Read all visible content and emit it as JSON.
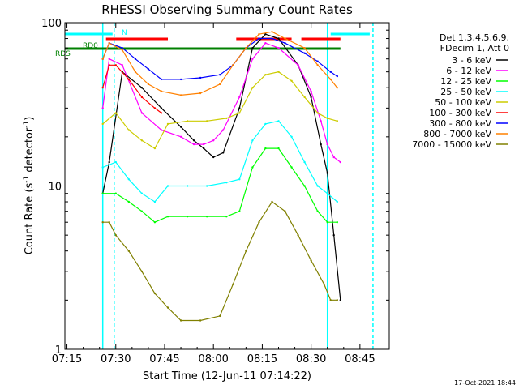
{
  "chart_data": {
    "type": "line",
    "title": "RHESSI Observing Summary Count Rates",
    "xlabel": "Start Time (12-Jun-11 07:14:22)",
    "ylabel_main": "Count Rate (s",
    "ylabel_sup1": "-1",
    "ylabel_mid": " detector",
    "ylabel_sup2": "-1",
    "ylabel_end": ")",
    "yscale": "log",
    "ylim": [
      1,
      100
    ],
    "xlim": [
      "07:14:22",
      "08:54:00"
    ],
    "x_ticks": [
      "07:15",
      "07:30",
      "07:45",
      "08:00",
      "08:15",
      "08:30",
      "08:45"
    ],
    "y_ticks": [
      "1",
      "10",
      "100"
    ],
    "legend_header": [
      "Det 1,3,4,5,6,9,",
      "FDecim 1, Att 0"
    ],
    "series": [
      {
        "name": "3 - 6 keV",
        "color": "#000000",
        "x": [
          "07:26",
          "07:28",
          "07:32",
          "07:38",
          "07:44",
          "07:50",
          "07:54",
          "07:57",
          "08:00",
          "08:03",
          "08:08",
          "08:12",
          "08:16",
          "08:20",
          "08:26",
          "08:30",
          "08:33",
          "08:35",
          "08:37",
          "08:39"
        ],
        "values": [
          9,
          14,
          50,
          40,
          30,
          23,
          19,
          17,
          15,
          16,
          30,
          70,
          85,
          80,
          55,
          35,
          18,
          12,
          5,
          2
        ]
      },
      {
        "name": "6 - 12 keV",
        "color": "#ff00ff",
        "x": [
          "07:26",
          "07:28",
          "07:32",
          "07:38",
          "07:44",
          "07:50",
          "07:54",
          "07:57",
          "08:00",
          "08:03",
          "08:08",
          "08:12",
          "08:16",
          "08:20",
          "08:26",
          "08:30",
          "08:33",
          "08:35",
          "08:37",
          "08:39"
        ],
        "values": [
          30,
          60,
          55,
          28,
          22,
          20,
          18,
          18,
          19,
          22,
          35,
          60,
          75,
          70,
          55,
          38,
          25,
          18,
          15,
          14
        ]
      },
      {
        "name": "12 - 25 keV",
        "color": "#00ff00",
        "x": [
          "07:26",
          "07:30",
          "07:34",
          "07:38",
          "07:42",
          "07:46",
          "07:52",
          "07:58",
          "08:04",
          "08:08",
          "08:12",
          "08:16",
          "08:20",
          "08:24",
          "08:28",
          "08:32",
          "08:35",
          "08:38"
        ],
        "values": [
          9,
          9,
          8,
          7,
          6,
          6.5,
          6.5,
          6.5,
          6.5,
          7,
          13,
          17,
          17,
          13,
          10,
          7,
          6,
          6
        ]
      },
      {
        "name": "25 - 50 keV",
        "color": "#00ffff",
        "x": [
          "07:26",
          "07:30",
          "07:34",
          "07:38",
          "07:42",
          "07:46",
          "07:52",
          "07:58",
          "08:04",
          "08:08",
          "08:12",
          "08:16",
          "08:20",
          "08:24",
          "08:28",
          "08:32",
          "08:35",
          "08:38"
        ],
        "values": [
          13,
          14,
          11,
          9,
          8,
          10,
          10,
          10,
          10.5,
          11,
          19,
          24,
          25,
          20,
          14,
          10,
          9,
          8
        ]
      },
      {
        "name": "50 - 100 keV",
        "color": "#cccc00",
        "x": [
          "07:26",
          "07:30",
          "07:34",
          "07:38",
          "07:42",
          "07:46",
          "07:52",
          "07:58",
          "08:04",
          "08:08",
          "08:12",
          "08:16",
          "08:20",
          "08:24",
          "08:28",
          "08:32",
          "08:35",
          "08:38"
        ],
        "values": [
          24,
          28,
          22,
          19,
          17,
          24,
          25,
          25,
          26,
          28,
          40,
          48,
          50,
          44,
          35,
          28,
          26,
          25
        ]
      },
      {
        "name": "100 - 300 keV",
        "color": "#ff0000",
        "x": [
          "07:26",
          "07:28",
          "07:30",
          "07:34",
          "07:38",
          "07:42",
          "07:44"
        ],
        "values": [
          40,
          55,
          55,
          45,
          35,
          30,
          28
        ]
      },
      {
        "name": "300 - 800 keV",
        "color": "#0000ff",
        "x": [
          "07:26",
          "07:28",
          "07:32",
          "07:36",
          "07:40",
          "07:44",
          "07:50",
          "07:56",
          "08:02",
          "08:06",
          "08:10",
          "08:14",
          "08:18",
          "08:22",
          "08:28",
          "08:32",
          "08:36",
          "08:38"
        ],
        "values": [
          60,
          75,
          70,
          60,
          52,
          45,
          45,
          46,
          48,
          55,
          70,
          80,
          80,
          75,
          65,
          58,
          50,
          47
        ]
      },
      {
        "name": "800 - 7000 keV",
        "color": "#ff8000",
        "x": [
          "07:26",
          "07:28",
          "07:32",
          "07:36",
          "07:40",
          "07:44",
          "07:50",
          "07:56",
          "08:02",
          "08:06",
          "08:10",
          "08:14",
          "08:18",
          "08:22",
          "08:28",
          "08:32",
          "08:36",
          "08:38"
        ],
        "values": [
          60,
          75,
          68,
          50,
          42,
          38,
          36,
          37,
          42,
          55,
          70,
          85,
          88,
          80,
          70,
          55,
          45,
          40
        ]
      },
      {
        "name": "7000 - 15000 keV",
        "color": "#808000",
        "x": [
          "07:26",
          "07:28",
          "07:30",
          "07:34",
          "07:38",
          "07:42",
          "07:46",
          "07:50",
          "07:56",
          "08:02",
          "08:06",
          "08:10",
          "08:14",
          "08:18",
          "08:22",
          "08:26",
          "08:30",
          "08:34",
          "08:36",
          "08:38"
        ],
        "values": [
          6,
          6,
          5,
          4,
          3,
          2.2,
          1.8,
          1.5,
          1.5,
          1.6,
          2.5,
          4,
          6,
          8,
          7,
          5,
          3.5,
          2.5,
          2,
          2
        ]
      }
    ],
    "flag_bars": [
      {
        "color": "#00ffff",
        "segments": [
          [
            "07:14:22",
            "07:29"
          ],
          [
            "08:36",
            "08:48"
          ]
        ]
      },
      {
        "color": "#ff0000",
        "segments": [
          [
            "07:27",
            "07:46"
          ],
          [
            "08:07",
            "08:24"
          ],
          [
            "08:27",
            "08:39"
          ]
        ]
      },
      {
        "color": "#008000",
        "segments": [
          [
            "07:14:22",
            "08:39"
          ]
        ]
      }
    ],
    "flag_labels": {
      "n": "N",
      "rd0": "RD0",
      "rds": "RDS"
    },
    "vlines": [
      {
        "color": "#00ffff",
        "x": "07:26",
        "style": "solid"
      },
      {
        "color": "#00ffff",
        "x": "07:29:30",
        "style": "dashed"
      },
      {
        "color": "#00ffff",
        "x": "08:35",
        "style": "solid"
      },
      {
        "color": "#00ffff",
        "x": "08:49",
        "style": "dashed"
      }
    ],
    "grid": false,
    "legend_placement": "right"
  },
  "footer": {
    "timestamp": "17-Oct-2021 18:44"
  }
}
